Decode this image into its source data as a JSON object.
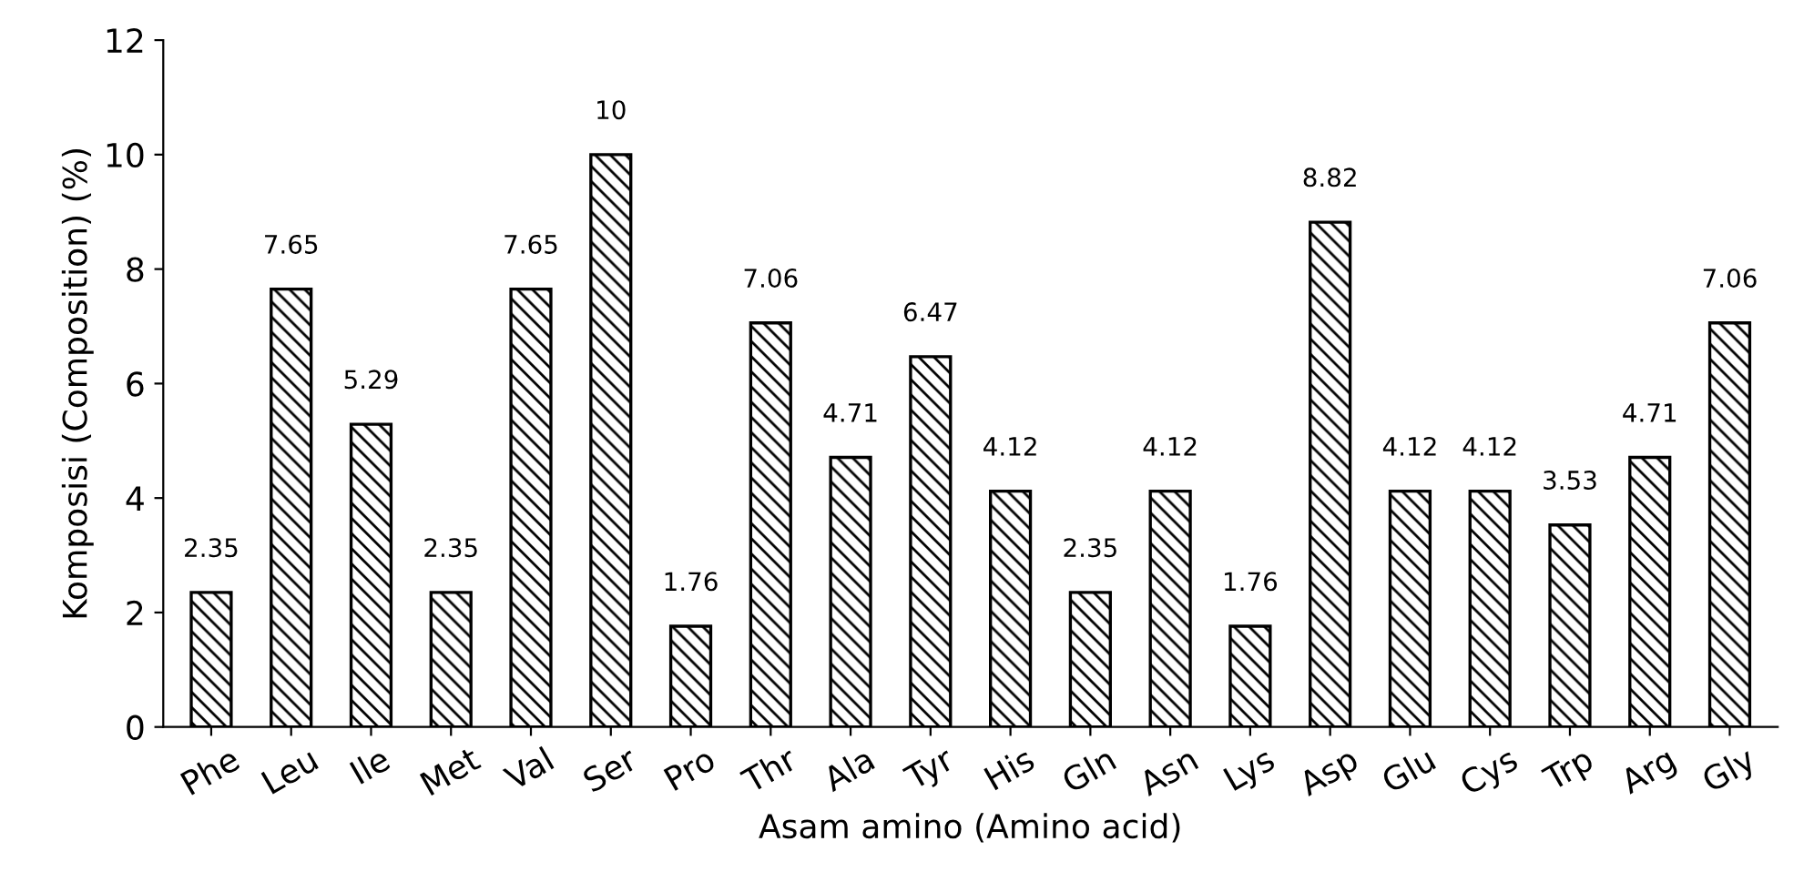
{
  "chart_data": {
    "type": "bar",
    "xlabel": "Asam amino (Amino acid)",
    "ylabel": "Komposisi (Composition) (%)",
    "categories": [
      "Phe",
      "Leu",
      "Ile",
      "Met",
      "Val",
      "Ser",
      "Pro",
      "Thr",
      "Ala",
      "Tyr",
      "His",
      "Gln",
      "Asn",
      "Lys",
      "Asp",
      "Glu",
      "Cys",
      "Trp",
      "Arg",
      "Gly"
    ],
    "values": [
      2.35,
      7.65,
      5.29,
      2.35,
      7.65,
      10,
      1.76,
      7.06,
      4.71,
      6.47,
      4.12,
      2.35,
      4.12,
      1.76,
      8.82,
      4.12,
      4.12,
      3.53,
      4.71,
      7.06
    ],
    "color": "#000000",
    "ylim": [
      0,
      12
    ],
    "yticks": [
      0,
      2,
      4,
      6,
      8,
      10,
      12
    ],
    "data_labels": true,
    "grid": false,
    "legend": false
  }
}
